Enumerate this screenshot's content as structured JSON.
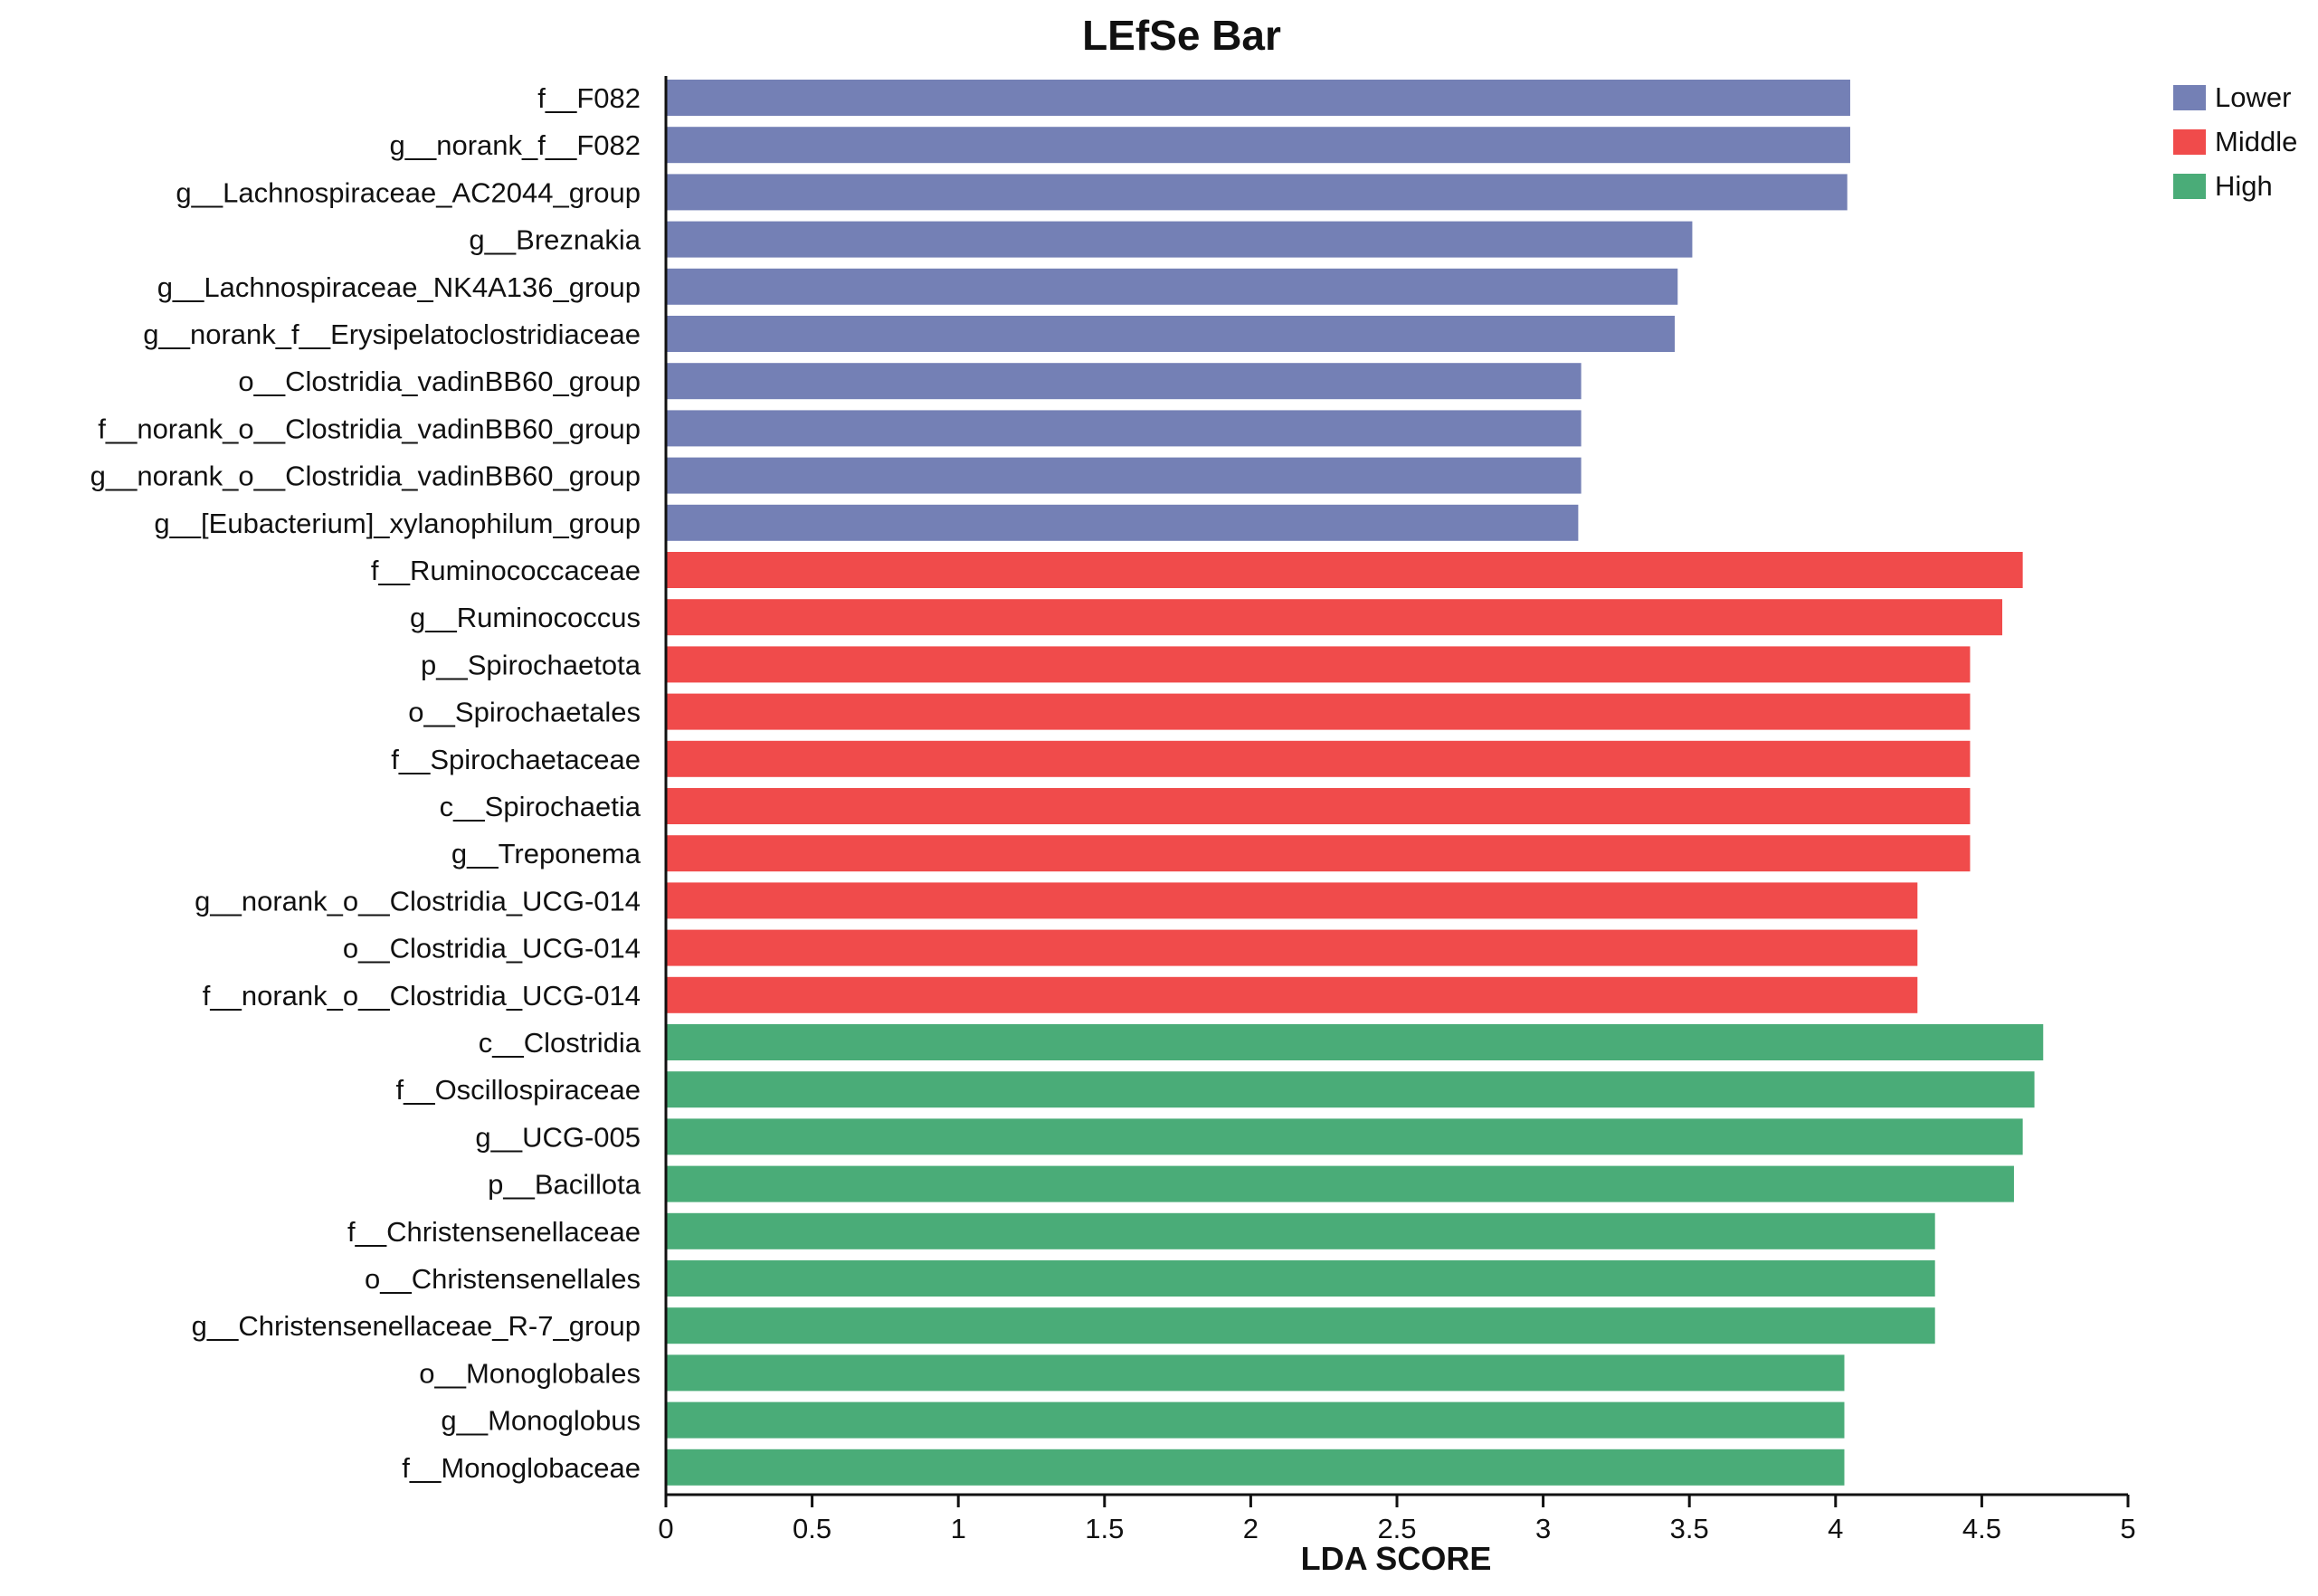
{
  "chart_data": {
    "type": "bar",
    "orientation": "horizontal",
    "title": "LEfSe Bar",
    "xlabel": "LDA SCORE",
    "ylabel": "",
    "xlim": [
      0,
      5
    ],
    "x_ticks": [
      "0",
      "0.5",
      "1",
      "1.5",
      "2",
      "2.5",
      "3",
      "3.5",
      "4",
      "4.5",
      "5"
    ],
    "grid": false,
    "legend_position": "top-right",
    "groups": [
      {
        "name": "Lower",
        "color": "#7480b5"
      },
      {
        "name": "Middle",
        "color": "#f04b4b"
      },
      {
        "name": "High",
        "color": "#4aac78"
      }
    ],
    "bars": [
      {
        "label": "f__F082",
        "value": 4.05,
        "group": "Lower"
      },
      {
        "label": "g__norank_f__F082",
        "value": 4.05,
        "group": "Lower"
      },
      {
        "label": "g__Lachnospiraceae_AC2044_group",
        "value": 4.04,
        "group": "Lower"
      },
      {
        "label": "g__Breznakia",
        "value": 3.51,
        "group": "Lower"
      },
      {
        "label": "g__Lachnospiraceae_NK4A136_group",
        "value": 3.46,
        "group": "Lower"
      },
      {
        "label": "g__norank_f__Erysipelatoclostridiaceae",
        "value": 3.45,
        "group": "Lower"
      },
      {
        "label": "o__Clostridia_vadinBB60_group",
        "value": 3.13,
        "group": "Lower"
      },
      {
        "label": "f__norank_o__Clostridia_vadinBB60_group",
        "value": 3.13,
        "group": "Lower"
      },
      {
        "label": "g__norank_o__Clostridia_vadinBB60_group",
        "value": 3.13,
        "group": "Lower"
      },
      {
        "label": "g__[Eubacterium]_xylanophilum_group",
        "value": 3.12,
        "group": "Lower"
      },
      {
        "label": "f__Ruminococcaceae",
        "value": 4.64,
        "group": "Middle"
      },
      {
        "label": "g__Ruminococcus",
        "value": 4.57,
        "group": "Middle"
      },
      {
        "label": "p__Spirochaetota",
        "value": 4.46,
        "group": "Middle"
      },
      {
        "label": "o__Spirochaetales",
        "value": 4.46,
        "group": "Middle"
      },
      {
        "label": "f__Spirochaetaceae",
        "value": 4.46,
        "group": "Middle"
      },
      {
        "label": "c__Spirochaetia",
        "value": 4.46,
        "group": "Middle"
      },
      {
        "label": "g__Treponema",
        "value": 4.46,
        "group": "Middle"
      },
      {
        "label": "g__norank_o__Clostridia_UCG-014",
        "value": 4.28,
        "group": "Middle"
      },
      {
        "label": "o__Clostridia_UCG-014",
        "value": 4.28,
        "group": "Middle"
      },
      {
        "label": "f__norank_o__Clostridia_UCG-014",
        "value": 4.28,
        "group": "Middle"
      },
      {
        "label": "c__Clostridia",
        "value": 4.71,
        "group": "High"
      },
      {
        "label": "f__Oscillospiraceae",
        "value": 4.68,
        "group": "High"
      },
      {
        "label": "g__UCG-005",
        "value": 4.64,
        "group": "High"
      },
      {
        "label": "p__Bacillota",
        "value": 4.61,
        "group": "High"
      },
      {
        "label": "f__Christensenellaceae",
        "value": 4.34,
        "group": "High"
      },
      {
        "label": "o__Christensenellales",
        "value": 4.34,
        "group": "High"
      },
      {
        "label": "g__Christensenellaceae_R-7_group",
        "value": 4.34,
        "group": "High"
      },
      {
        "label": "o__Monoglobales",
        "value": 4.03,
        "group": "High"
      },
      {
        "label": "g__Monoglobus",
        "value": 4.03,
        "group": "High"
      },
      {
        "label": "f__Monoglobaceae",
        "value": 4.03,
        "group": "High"
      }
    ]
  }
}
